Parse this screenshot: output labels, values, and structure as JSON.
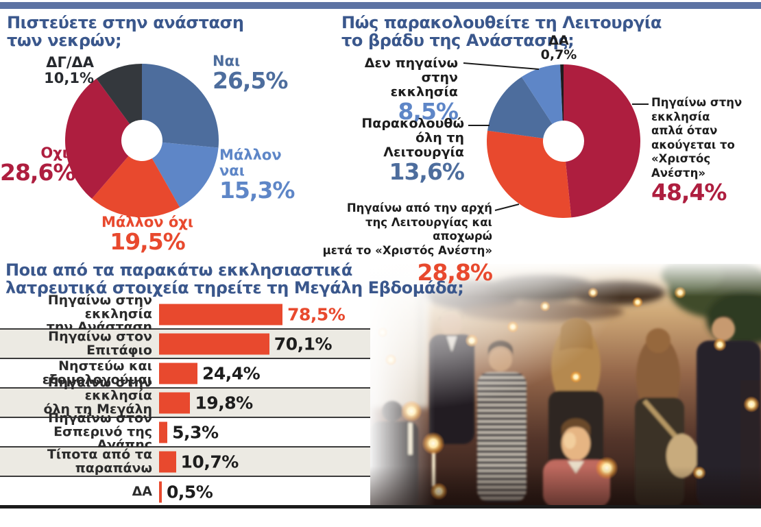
{
  "palette": {
    "top_bar": "#5d73a3",
    "title_blue": "#3a578c",
    "dark_blue": "#4d6d9d",
    "light_blue": "#5e86c7",
    "orange": "#e8492e",
    "crimson": "#ae1e3f",
    "dark_gray": "#34383d",
    "black": "#1d1d1d",
    "row_gray": "#eceae3",
    "bar_orange": "#e8492e"
  },
  "photo": {
    "name": "easter-resurrection-night-crowd-with-candles-photo"
  },
  "chart_data": [
    {
      "id": "belief_pie",
      "type": "pie",
      "title": "Πιστεύετε στην ανάσταση\nτων νεκρών;",
      "donut": true,
      "slices": [
        {
          "label": "Ναι",
          "value": 26.5,
          "display": "26,5%",
          "color_key": "dark_blue"
        },
        {
          "label": "Μάλλον\nναι",
          "value": 15.3,
          "display": "15,3%",
          "color_key": "light_blue"
        },
        {
          "label": "Μάλλον όχι",
          "value": 19.5,
          "display": "19,5%",
          "color_key": "orange"
        },
        {
          "label": "Οχι",
          "value": 28.6,
          "display": "28,6%",
          "color_key": "crimson"
        },
        {
          "label": "ΔΓ/ΔΑ",
          "value": 10.1,
          "display": "10,1%",
          "color_key": "dark_gray"
        }
      ]
    },
    {
      "id": "liturgy_pie",
      "type": "pie",
      "title": "Πώς παρακολουθείτε τη Λειτουργία\nτο βράδυ της Ανάστασης;",
      "donut": true,
      "slices": [
        {
          "label": "Πηγαίνω στην\nεκκλησία\nαπλά όταν\nακούγεται το\n«Χριστός Ανέστη»",
          "value": 48.4,
          "display": "48,4%",
          "color_key": "crimson"
        },
        {
          "label": "Πηγαίνω από την αρχή\nτης Λειτουργίας και αποχωρώ\nμετά το «Χριστός Ανέστη»",
          "value": 28.8,
          "display": "28,8%",
          "color_key": "orange"
        },
        {
          "label": "Παρακολουθώ\nόλη τη Λειτουργία",
          "value": 13.6,
          "display": "13,6%",
          "color_key": "dark_blue"
        },
        {
          "label": "Δεν πηγαίνω\nστην εκκλησία",
          "value": 8.5,
          "display": "8,5%",
          "color_key": "light_blue"
        },
        {
          "label": "ΔΑ",
          "value": 0.7,
          "display": "0,7%",
          "color_key": "black"
        }
      ]
    },
    {
      "id": "holy_week_customs_bars",
      "type": "bar",
      "title": "Ποια από τα παρακάτω εκκλησιαστικά\nλατρευτικά στοιχεία τηρείτε τη Μεγάλη Εβδομάδα;",
      "xlim": [
        0,
        100
      ],
      "rows": [
        {
          "label": "Πηγαίνω στην εκκλησία\nτην Ανάσταση",
          "value": 78.5,
          "display": "78,5%",
          "highlight": true
        },
        {
          "label": "Πηγαίνω στον Επιτάφιο",
          "value": 70.1,
          "display": "70,1%",
          "highlight": false
        },
        {
          "label": "Νηστεύω και\nεξομολογούμαι",
          "value": 24.4,
          "display": "24,4%",
          "highlight": false
        },
        {
          "label": "Πηγαίνω στην εκκλησία\nόλη τη Μεγάλη Εβδομάδα",
          "value": 19.8,
          "display": "19,8%",
          "highlight": false
        },
        {
          "label": "Πηγαίνω στον\nΕσπερινό της Αγάπης",
          "value": 5.3,
          "display": "5,3%",
          "highlight": false
        },
        {
          "label": "Τίποτα από τα παραπάνω",
          "value": 10.7,
          "display": "10,7%",
          "highlight": false
        },
        {
          "label": "ΔΑ",
          "value": 0.5,
          "display": "0,5%",
          "highlight": false
        }
      ]
    }
  ]
}
